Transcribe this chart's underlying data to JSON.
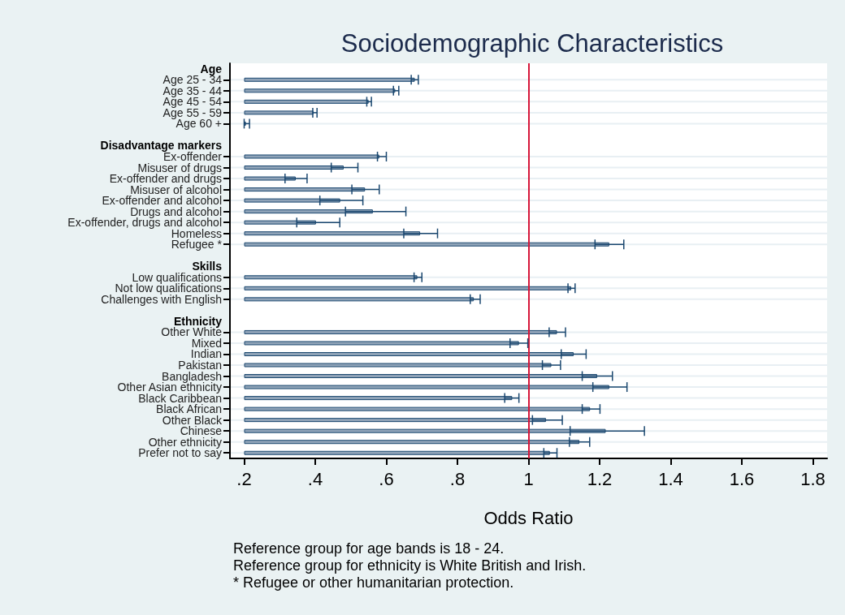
{
  "chart_data": {
    "type": "bar",
    "orientation": "horizontal",
    "title": "Sociodemographic Characteristics",
    "xlabel": "Odds Ratio",
    "categories": [
      "Age",
      "Age 25 - 34",
      "Age 35 - 44",
      "Age 45 - 54",
      "Age 55 - 59",
      "Age 60 +",
      null,
      "Disadvantage markers",
      "Ex-offender",
      "Misuser of drugs",
      "Ex-offender and drugs",
      "Misuser of alcohol",
      "Ex-offender and alcohol",
      "Drugs and alcohol",
      "Ex-offender, drugs and alcohol",
      "Homeless",
      "Refugee *",
      null,
      "Skills",
      "Low qualifications",
      "Not low qualifications",
      "Challenges with English",
      null,
      "Ethnicity",
      "Other White",
      "Mixed",
      "Indian",
      "Pakistan",
      "Bangladesh",
      "Other Asian ethnicity",
      "Black Caribbean",
      "Black African",
      "Other Black",
      "Chinese",
      "Other ethnicity",
      "Prefer not to say"
    ],
    "series": [
      {
        "color": "#8fa3b8",
        "base": [
          null,
          0.2,
          0.2,
          0.2,
          0.2,
          0.2,
          null,
          null,
          0.2,
          0.2,
          0.2,
          0.2,
          0.2,
          0.2,
          0.2,
          0.2,
          0.2,
          null,
          null,
          0.2,
          0.2,
          0.2,
          null,
          null,
          0.2,
          0.2,
          0.2,
          0.2,
          0.2,
          0.2,
          0.2,
          0.2,
          0.2,
          0.2,
          0.2,
          0.2
        ],
        "values": [
          null,
          0.48,
          0.425,
          0.35,
          0.195,
          0.005,
          null,
          null,
          0.38,
          0.28,
          0.145,
          0.34,
          0.27,
          0.362,
          0.202,
          0.495,
          1.027,
          null,
          null,
          0.487,
          0.92,
          0.646,
          null,
          null,
          0.88,
          0.773,
          0.927,
          0.864,
          0.993,
          1.027,
          0.754,
          0.973,
          0.849,
          1.017,
          0.943,
          0.86
        ],
        "errors": [
          null,
          [
            0.67,
            0.69
          ],
          [
            0.62,
            0.635
          ],
          [
            0.545,
            0.558
          ],
          [
            0.393,
            0.405
          ],
          [
            0.2,
            0.215
          ],
          null,
          null,
          [
            0.575,
            0.6
          ],
          [
            0.445,
            0.52
          ],
          [
            0.315,
            0.377
          ],
          [
            0.503,
            0.58
          ],
          [
            0.413,
            0.534
          ],
          [
            0.485,
            0.655
          ],
          [
            0.348,
            0.469
          ],
          [
            0.649,
            0.744
          ],
          [
            1.187,
            1.268
          ],
          null,
          null,
          [
            0.678,
            0.7
          ],
          [
            1.111,
            1.131
          ],
          [
            0.836,
            0.864
          ],
          null,
          null,
          [
            1.058,
            1.104
          ],
          [
            0.948,
            0.998
          ],
          [
            1.092,
            1.162
          ],
          [
            1.039,
            1.09
          ],
          [
            1.151,
            1.236
          ],
          [
            1.181,
            1.277
          ],
          [
            0.933,
            0.973
          ],
          [
            1.151,
            1.201
          ],
          [
            1.011,
            1.095
          ],
          [
            1.117,
            1.326
          ],
          [
            1.115,
            1.172
          ],
          [
            1.043,
            1.08
          ]
        ]
      }
    ],
    "xlim": [
      0.16,
      1.84
    ],
    "xticks": [
      {
        "value": 0.2,
        "label": ".2"
      },
      {
        "value": 0.4,
        "label": ".4"
      },
      {
        "value": 0.6,
        "label": ".6"
      },
      {
        "value": 0.8,
        "label": ".8"
      },
      1,
      1.2,
      1.4,
      1.6,
      1.8
    ],
    "ref_lines": [
      {
        "axis": "x",
        "value": 1,
        "color": "#d6173a"
      }
    ],
    "grid": "y",
    "annotations": [
      "Reference group for age bands is 18 - 24.",
      "Reference group for ethnicity is White British and Irish.",
      "* Refugee or other humanitarian protection."
    ]
  }
}
